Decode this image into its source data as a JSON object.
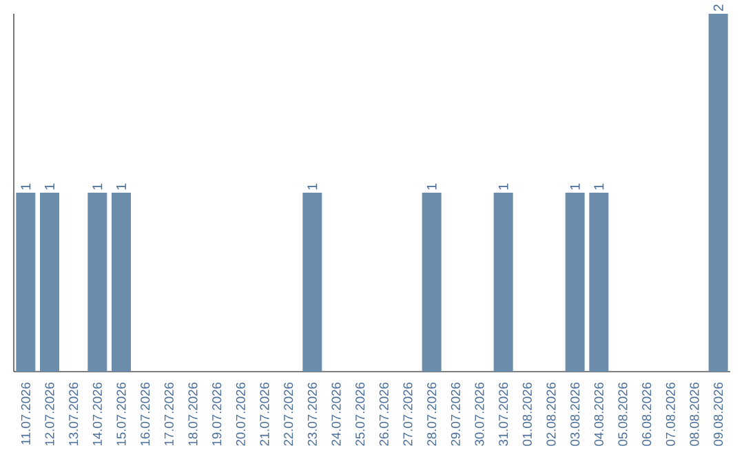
{
  "chart_data": {
    "type": "bar",
    "categories": [
      "11.07.2026",
      "12.07.2026",
      "13.07.2026",
      "14.07.2026",
      "15.07.2026",
      "16.07.2026",
      "17.07.2026",
      "18.07.2026",
      "19.07.2026",
      "20.07.2026",
      "21.07.2026",
      "22.07.2026",
      "23.07.2026",
      "24.07.2026",
      "25.07.2026",
      "26.07.2026",
      "27.07.2026",
      "28.07.2026",
      "29.07.2026",
      "30.07.2026",
      "31.07.2026",
      "01.08.2026",
      "02.08.2026",
      "03.08.2026",
      "04.08.2026",
      "05.08.2026",
      "06.08.2026",
      "07.08.2026",
      "08.08.2026",
      "09.08.2026"
    ],
    "values": [
      1,
      1,
      0,
      1,
      1,
      0,
      0,
      0,
      0,
      0,
      0,
      0,
      1,
      0,
      0,
      0,
      0,
      1,
      0,
      0,
      1,
      0,
      0,
      1,
      1,
      0,
      0,
      0,
      0,
      2
    ],
    "value_labels": [
      "1",
      "1",
      null,
      "1",
      "1",
      null,
      null,
      null,
      null,
      null,
      null,
      null,
      "1",
      null,
      null,
      null,
      null,
      "1",
      null,
      null,
      "1",
      null,
      null,
      "1",
      "1",
      null,
      null,
      null,
      null,
      "2"
    ],
    "color": "#6b8cab",
    "tick_labels": "x"
  }
}
